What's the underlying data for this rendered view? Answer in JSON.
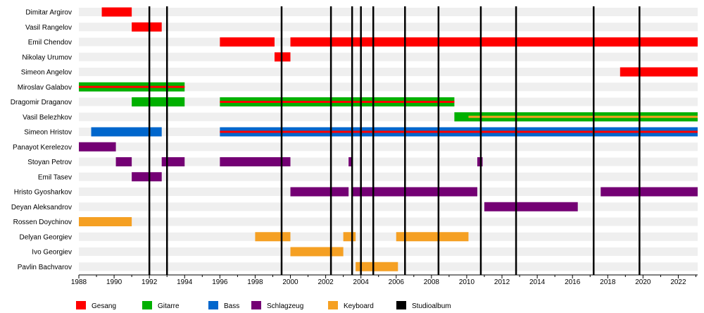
{
  "chart_data": {
    "type": "timeline",
    "title": "",
    "xlabel": "",
    "ylabel": "",
    "xlim": [
      1988,
      2023.1
    ],
    "x_ticks": [
      "1988",
      "1990",
      "1992",
      "1994",
      "1996",
      "1998",
      "2000",
      "2002",
      "2004",
      "2006",
      "2008",
      "2010",
      "2012",
      "2014",
      "2016",
      "2018",
      "2020",
      "2022"
    ],
    "roles": {
      "Gesang": "#ff0000",
      "Gitarre": "#00b000",
      "Bass": "#0066cc",
      "Schlagzeug": "#740074",
      "Keyboard": "#f5a023",
      "Studioalbum": "#000000"
    },
    "legend": [
      "Gesang",
      "Gitarre",
      "Bass",
      "Schlagzeug",
      "Keyboard",
      "Studioalbum"
    ],
    "albums": [
      1992.0,
      1993.0,
      1999.5,
      2002.3,
      2003.5,
      2004.0,
      2004.7,
      2006.5,
      2008.4,
      2010.8,
      2012.8,
      2017.2,
      2019.8
    ],
    "members": [
      {
        "name": "Dimitar Argirov",
        "bars": [
          {
            "role": "Gesang",
            "start": 1989.3,
            "end": 1991.0
          }
        ]
      },
      {
        "name": "Vasil Rangelov",
        "bars": [
          {
            "role": "Gesang",
            "start": 1991.0,
            "end": 1992.7
          }
        ]
      },
      {
        "name": "Emil Chendov",
        "bars": [
          {
            "role": "Gesang",
            "start": 1996.0,
            "end": 1999.1
          },
          {
            "role": "Gesang",
            "start": 2000.0,
            "end": 2023.1
          }
        ]
      },
      {
        "name": "Nikolay Urumov",
        "bars": [
          {
            "role": "Gesang",
            "start": 1999.1,
            "end": 2000.0
          }
        ]
      },
      {
        "name": "Simeon Angelov",
        "bars": [
          {
            "role": "Gesang",
            "start": 2018.7,
            "end": 2023.1
          }
        ]
      },
      {
        "name": "Miroslav Galabov",
        "bars": [
          {
            "role": "Gitarre",
            "start": 1988.0,
            "end": 1994.0
          },
          {
            "role": "Gesang",
            "start": 1988.0,
            "end": 1994.0,
            "stripe": true
          }
        ]
      },
      {
        "name": "Dragomir Draganov",
        "bars": [
          {
            "role": "Gitarre",
            "start": 1991.0,
            "end": 1994.0
          },
          {
            "role": "Gitarre",
            "start": 1996.0,
            "end": 2009.3
          },
          {
            "role": "Gesang",
            "start": 1996.0,
            "end": 2009.3,
            "stripe": true
          }
        ]
      },
      {
        "name": "Vasil Belezhkov",
        "bars": [
          {
            "role": "Gitarre",
            "start": 2009.3,
            "end": 2023.1
          },
          {
            "role": "Keyboard",
            "start": 2010.1,
            "end": 2023.1,
            "stripe": true
          }
        ]
      },
      {
        "name": "Simeon Hristov",
        "bars": [
          {
            "role": "Bass",
            "start": 1988.7,
            "end": 1992.7
          },
          {
            "role": "Bass",
            "start": 1996.0,
            "end": 2023.1
          },
          {
            "role": "Gesang",
            "start": 1996.0,
            "end": 2023.1,
            "stripe": true
          }
        ]
      },
      {
        "name": "Panayot Kerelezov",
        "bars": [
          {
            "role": "Schlagzeug",
            "start": 1988.0,
            "end": 1990.1
          }
        ]
      },
      {
        "name": "Stoyan Petrov",
        "bars": [
          {
            "role": "Schlagzeug",
            "start": 1990.1,
            "end": 1991.0
          },
          {
            "role": "Schlagzeug",
            "start": 1992.7,
            "end": 1994.0
          },
          {
            "role": "Schlagzeug",
            "start": 1996.0,
            "end": 2000.0
          },
          {
            "role": "Schlagzeug",
            "start": 2003.3,
            "end": 2003.5
          },
          {
            "role": "Schlagzeug",
            "start": 2010.6,
            "end": 2010.9
          }
        ]
      },
      {
        "name": "Emil Tasev",
        "bars": [
          {
            "role": "Schlagzeug",
            "start": 1991.0,
            "end": 1992.7
          }
        ]
      },
      {
        "name": "Hristo Gyosharkov",
        "bars": [
          {
            "role": "Schlagzeug",
            "start": 2000.0,
            "end": 2003.3
          },
          {
            "role": "Schlagzeug",
            "start": 2003.5,
            "end": 2010.6
          },
          {
            "role": "Schlagzeug",
            "start": 2017.6,
            "end": 2023.1
          }
        ]
      },
      {
        "name": "Deyan Aleksandrov",
        "bars": [
          {
            "role": "Schlagzeug",
            "start": 2011.0,
            "end": 2016.3
          }
        ]
      },
      {
        "name": "Rossen Doychinov",
        "bars": [
          {
            "role": "Keyboard",
            "start": 1988.0,
            "end": 1991.0
          }
        ]
      },
      {
        "name": "Delyan Georgiev",
        "bars": [
          {
            "role": "Keyboard",
            "start": 1998.0,
            "end": 2000.0
          },
          {
            "role": "Keyboard",
            "start": 2003.0,
            "end": 2003.7
          },
          {
            "role": "Keyboard",
            "start": 2006.0,
            "end": 2010.1
          }
        ]
      },
      {
        "name": "Ivo Georgiev",
        "bars": [
          {
            "role": "Keyboard",
            "start": 2000.0,
            "end": 2003.0
          }
        ]
      },
      {
        "name": "Pavlin Bachvarov",
        "bars": [
          {
            "role": "Keyboard",
            "start": 2003.7,
            "end": 2006.1
          }
        ]
      }
    ]
  }
}
